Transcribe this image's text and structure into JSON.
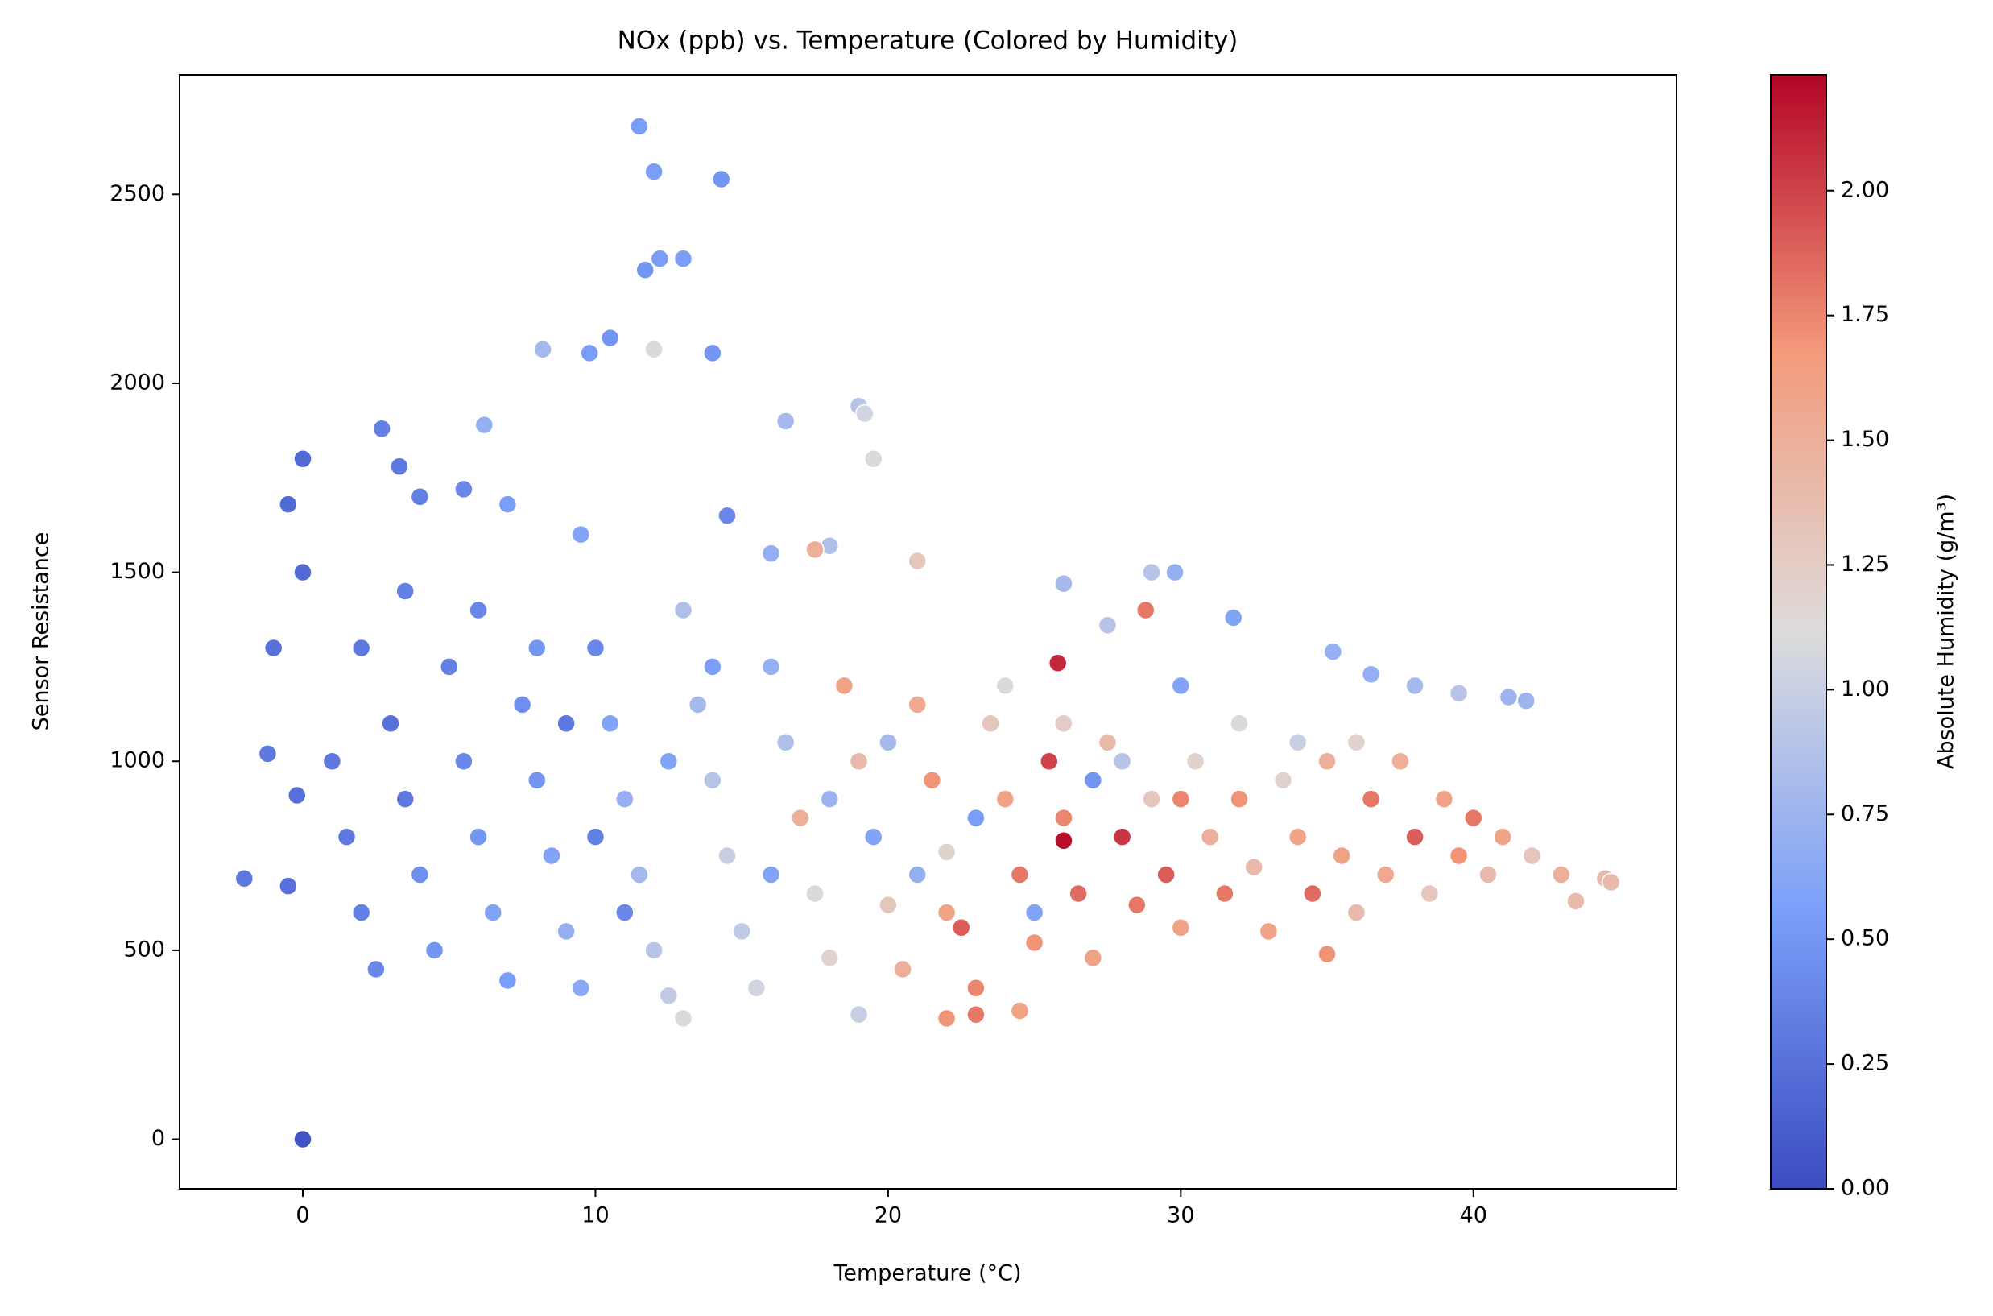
{
  "chart_data": {
    "type": "scatter",
    "title": "NOx (ppb) vs. Temperature (Colored by Humidity)",
    "x_label": "Temperature (°C)",
    "y_label": "Sensor Resistance",
    "colorbar_label": "Absolute Humidity (g/m³)",
    "x": [
      0,
      -2,
      -0.5,
      0,
      -0.5,
      0,
      -1,
      -1.2,
      -0.2,
      11.5,
      12,
      14.3,
      12.2,
      13,
      11.7,
      14,
      10.5,
      8.2,
      12,
      9.8,
      2.7,
      6.2,
      19,
      19.2,
      19.5,
      16.5,
      29,
      29.8,
      28.8,
      26,
      27.5,
      31.8,
      35.2,
      36.5,
      39.5,
      41.2,
      41.8,
      44.5,
      44.7,
      43.5,
      35,
      25.8,
      26,
      23,
      22,
      24.5,
      13,
      19,
      4,
      5.5,
      3.3,
      7,
      9.5,
      14.5,
      16,
      18,
      21,
      17.5,
      1,
      1.5,
      2,
      2.5,
      3,
      3.5,
      4,
      4.5,
      5,
      5.5,
      6,
      6.5,
      7,
      7.5,
      8,
      8.5,
      9,
      9.5,
      10,
      10.5,
      11,
      11.5,
      12,
      12.5,
      13,
      13.5,
      14,
      14.5,
      15,
      15.5,
      16,
      16.5,
      17,
      17.5,
      18,
      18.5,
      19,
      19.5,
      20,
      20.5,
      21,
      21.5,
      22,
      22.5,
      23,
      23.5,
      24,
      24.5,
      25,
      25.5,
      26,
      26.5,
      27,
      27.5,
      28,
      28.5,
      29,
      29.5,
      30,
      30.5,
      31,
      31.5,
      32,
      32.5,
      33,
      33.5,
      34,
      34.5,
      35,
      35.5,
      36,
      36.5,
      37,
      37.5,
      38,
      38.5,
      39,
      39.5,
      40,
      40.5,
      41,
      42,
      43,
      2,
      3.5,
      6,
      8,
      9,
      10,
      11,
      12.5,
      14,
      16,
      18,
      20,
      21,
      23,
      24,
      26,
      28,
      30,
      32,
      34,
      36,
      38,
      25,
      27,
      22,
      30
    ],
    "values": [
      0,
      690,
      670,
      1800,
      1680,
      1500,
      1300,
      1020,
      910,
      2680,
      2560,
      2540,
      2330,
      2330,
      2300,
      2080,
      2120,
      2090,
      2090,
      2080,
      1880,
      1890,
      1940,
      1920,
      1800,
      1900,
      1500,
      1500,
      1400,
      1470,
      1360,
      1380,
      1290,
      1230,
      1180,
      1170,
      1160,
      690,
      680,
      630,
      490,
      1260,
      790,
      330,
      320,
      340,
      320,
      330,
      1700,
      1720,
      1780,
      1680,
      1600,
      1650,
      1550,
      1570,
      1530,
      1560,
      1000,
      800,
      600,
      450,
      1100,
      900,
      700,
      500,
      1250,
      1000,
      800,
      600,
      420,
      1150,
      950,
      750,
      550,
      400,
      1300,
      1100,
      900,
      700,
      500,
      380,
      1400,
      1150,
      950,
      750,
      550,
      400,
      1250,
      1050,
      850,
      650,
      480,
      1200,
      1000,
      800,
      620,
      450,
      1150,
      950,
      760,
      560,
      400,
      1100,
      900,
      700,
      520,
      1000,
      850,
      650,
      480,
      1050,
      800,
      620,
      900,
      700,
      560,
      1000,
      800,
      650,
      900,
      720,
      550,
      950,
      800,
      650,
      1000,
      750,
      600,
      900,
      700,
      1000,
      800,
      650,
      900,
      750,
      850,
      700,
      800,
      750,
      700,
      1300,
      1450,
      1400,
      1300,
      1100,
      800,
      600,
      1000,
      1250,
      700,
      900,
      1050,
      700,
      850,
      1200,
      1100,
      1000,
      1200,
      1100,
      1050,
      1050,
      1200,
      600,
      950,
      600,
      900
    ],
    "humidity": [
      0.05,
      0.3,
      0.25,
      0.2,
      0.2,
      0.2,
      0.25,
      0.3,
      0.25,
      0.55,
      0.55,
      0.5,
      0.55,
      0.55,
      0.5,
      0.5,
      0.5,
      0.8,
      1.1,
      0.55,
      0.35,
      0.7,
      0.9,
      1.05,
      1.1,
      0.8,
      0.9,
      0.7,
      1.8,
      0.8,
      0.9,
      0.6,
      0.7,
      0.7,
      0.9,
      0.75,
      0.75,
      1.4,
      1.4,
      1.4,
      1.7,
      2.1,
      2.2,
      1.8,
      1.7,
      1.6,
      1.1,
      1.0,
      0.35,
      0.4,
      0.3,
      0.55,
      0.6,
      0.4,
      0.7,
      0.85,
      1.3,
      1.5,
      0.3,
      0.3,
      0.35,
      0.4,
      0.25,
      0.3,
      0.45,
      0.5,
      0.35,
      0.4,
      0.5,
      0.6,
      0.55,
      0.45,
      0.5,
      0.6,
      0.7,
      0.65,
      0.4,
      0.6,
      0.7,
      0.8,
      0.9,
      0.95,
      0.85,
      0.8,
      0.9,
      1.0,
      0.95,
      1.05,
      0.7,
      0.85,
      1.5,
      1.1,
      1.2,
      1.6,
      1.4,
      0.6,
      1.3,
      1.5,
      1.55,
      1.7,
      1.2,
      1.9,
      1.75,
      1.3,
      1.6,
      1.8,
      1.7,
      2.0,
      1.75,
      1.85,
      1.6,
      1.4,
      2.05,
      1.8,
      1.3,
      1.9,
      1.6,
      1.2,
      1.5,
      1.8,
      1.7,
      1.4,
      1.6,
      1.2,
      1.6,
      1.85,
      1.5,
      1.6,
      1.4,
      1.8,
      1.55,
      1.5,
      1.9,
      1.3,
      1.6,
      1.7,
      1.8,
      1.4,
      1.6,
      1.3,
      1.5,
      0.3,
      0.35,
      0.4,
      0.5,
      0.3,
      0.35,
      0.4,
      0.6,
      0.55,
      0.6,
      0.75,
      0.8,
      0.7,
      0.55,
      1.1,
      1.25,
      0.9,
      0.6,
      1.1,
      1.0,
      1.2,
      0.8,
      0.6,
      0.5,
      1.6,
      1.75
    ],
    "colormap": [
      "#3b4cc0",
      "#7b9ff9",
      "#dddcdc",
      "#f49a7b",
      "#b40426"
    ],
    "xlim": [
      -4.21,
      46.94
    ],
    "xticks": [
      0,
      10,
      20,
      30,
      40
    ],
    "ylim": [
      -131,
      2816
    ],
    "yticks": [
      0,
      500,
      1000,
      1500,
      2000,
      2500
    ],
    "clim": [
      0,
      2.232
    ],
    "cticks": [
      {
        "value": 0,
        "label": "0.00"
      },
      {
        "value": 0.25,
        "label": "0.25"
      },
      {
        "value": 0.5,
        "label": "0.50"
      },
      {
        "value": 0.75,
        "label": "0.75"
      },
      {
        "value": 1,
        "label": "1.00"
      },
      {
        "value": 1.25,
        "label": "1.25"
      },
      {
        "value": 1.5,
        "label": "1.50"
      },
      {
        "value": 1.75,
        "label": "1.75"
      },
      {
        "value": 2,
        "label": "2.00"
      }
    ],
    "grid": false
  }
}
